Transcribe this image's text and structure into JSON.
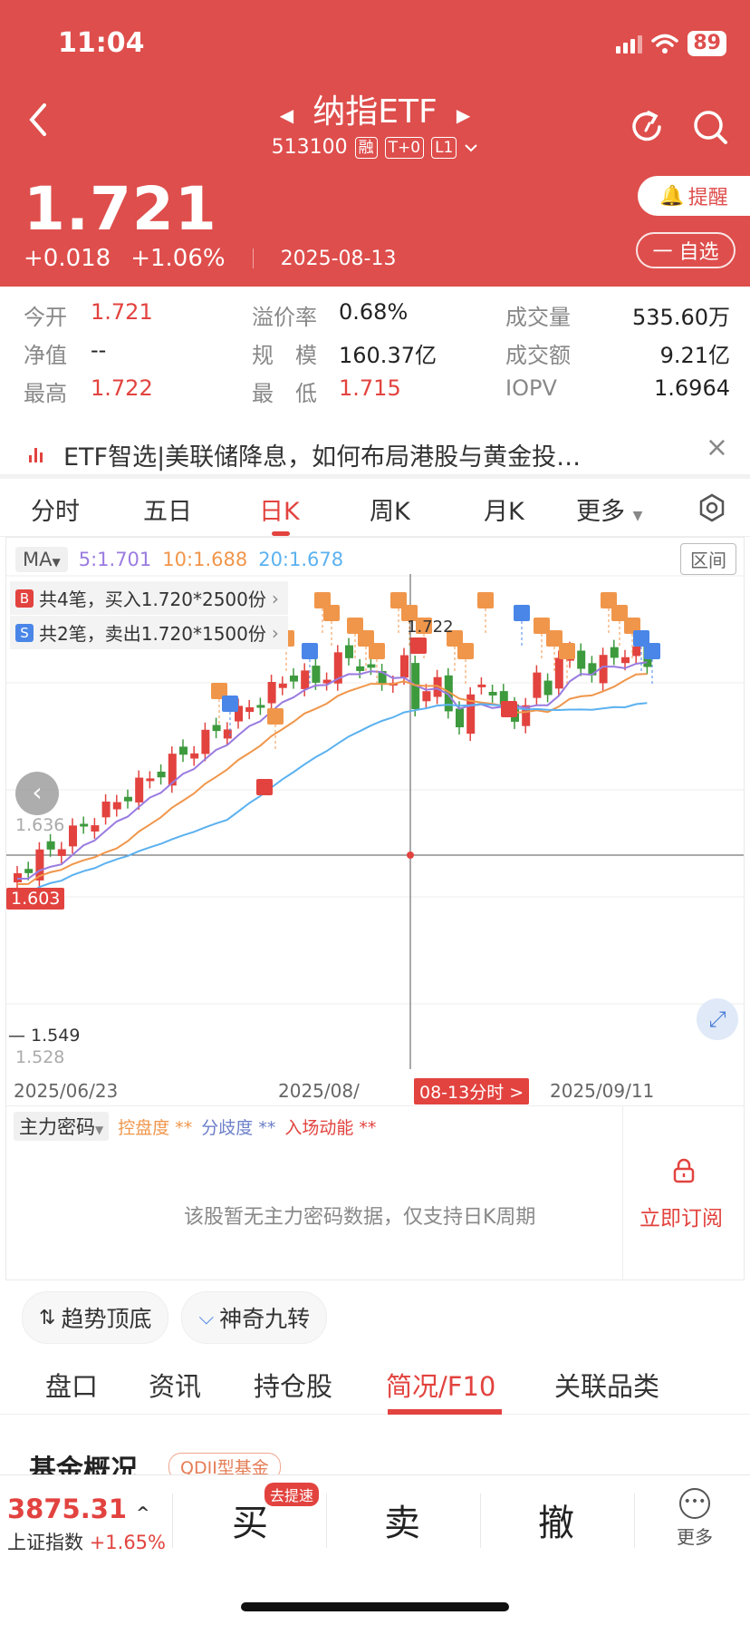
{
  "status": {
    "time": "11:04",
    "battery": "89"
  },
  "header": {
    "title": "纳指ETF",
    "code": "513100",
    "tags": [
      "融",
      "T+0",
      "L1"
    ],
    "price": "1.721",
    "change": "+0.018",
    "change_pct": "+1.06%",
    "date": "2025-08-13",
    "remind_label": "提醒",
    "watch_label": "一 自选"
  },
  "quote": {
    "open_label": "今开",
    "open": "1.721",
    "nav_label": "净值",
    "nav": "--",
    "high_label": "最高",
    "high": "1.722",
    "premium_label": "溢价率",
    "premium": "0.68%",
    "scale_label": "规　模",
    "scale": "160.37亿",
    "low_label": "最　低",
    "low": "1.715",
    "volume_label": "成交量",
    "volume": "535.60万",
    "amount_label": "成交额",
    "amount": "9.21亿",
    "iopv_label": "IOPV",
    "iopv": "1.6964"
  },
  "news": {
    "text": "ETF智选|美联储降息，如何布局港股与黄金投…"
  },
  "chart_tabs": [
    "分时",
    "五日",
    "日K",
    "周K",
    "月K",
    "更多"
  ],
  "chart": {
    "ma_select": "MA",
    "ma5": "5:1.701",
    "ma10": "10:1.688",
    "ma20": "20:1.678",
    "range_label": "区间",
    "buy_tip": "共4笔，买入1.720*2500份",
    "sell_tip": "共2笔，卖出1.720*1500份",
    "buy_badge": "B",
    "sell_badge": "S",
    "y_label_1": "1.636",
    "y_label_2": "1.528",
    "current_marker": "1.603",
    "low_mark": "1.549",
    "high_mark": "1.722",
    "date_start": "2025/06/23",
    "date_mid": "2025/08/",
    "date_end": "2025/09/11",
    "crosshair_date": "08-13分时 >",
    "colors": {
      "up": "#e2433f",
      "down": "#3d9a3d",
      "ma5": "#9a7be0",
      "ma10": "#f0964b",
      "ma20": "#5bb1f0"
    }
  },
  "chart_data": {
    "type": "candlestick",
    "x": [
      "2025/06/23",
      "2025/08/13",
      "2025/09/11"
    ],
    "series": [
      {
        "name": "MA5",
        "last": 1.701
      },
      {
        "name": "MA10",
        "last": 1.688
      },
      {
        "name": "MA20",
        "last": 1.678
      }
    ],
    "y_labels": [
      1.636,
      1.528
    ],
    "marked_high": 1.722,
    "marked_low": 1.549,
    "current": 1.603
  },
  "sub_panel": {
    "select": "主力密码",
    "ind1": "控盘度 **",
    "ind2": "分歧度 **",
    "ind3": "入场动能 **",
    "message": "该股暂无主力密码数据，仅支持日K周期",
    "subscribe": "立即订阅"
  },
  "tools": {
    "trend": "趋势顶底",
    "nine": "神奇九转"
  },
  "bottom_tabs": [
    "盘口",
    "资讯",
    "持仓股",
    "简况/F10",
    "关联品类"
  ],
  "fund": {
    "title": "基金概况",
    "tag": "QDII型基金"
  },
  "bottom_bar": {
    "index_value": "3875.31",
    "index_name": "上证指数",
    "index_change": "+1.65%",
    "buy": "买",
    "fast_tag": "去提速",
    "sell": "卖",
    "cancel": "撤",
    "more": "更多"
  }
}
